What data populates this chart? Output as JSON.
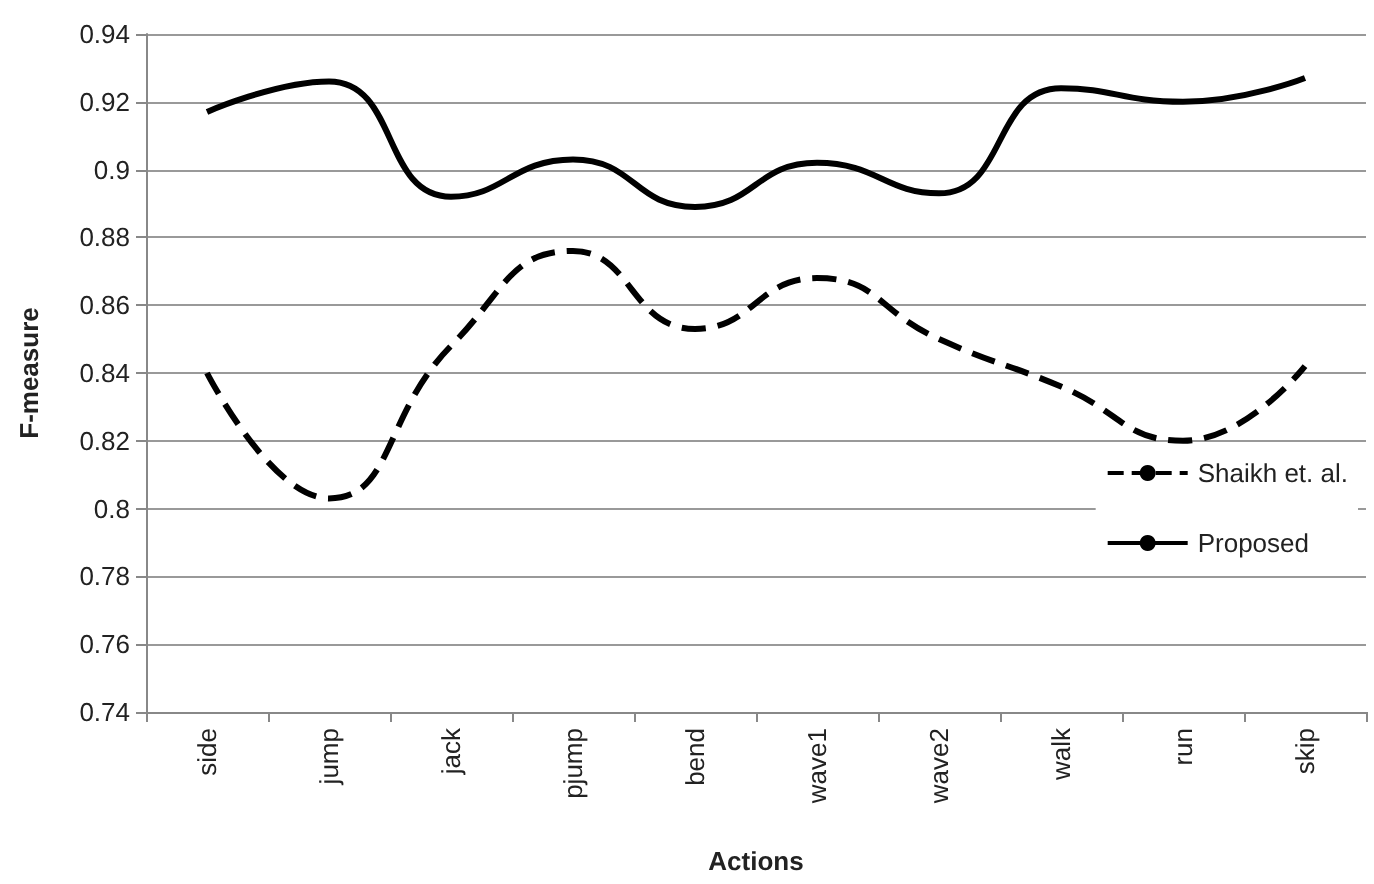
{
  "chart_data": {
    "type": "line",
    "xlabel": "Actions",
    "ylabel": "F-measure",
    "categories": [
      "side",
      "jump",
      "jack",
      "pjump",
      "bend",
      "wave1",
      "wave2",
      "walk",
      "run",
      "skip"
    ],
    "series": [
      {
        "name": "Shaikh et. al.",
        "color": "#000000",
        "line_style": "dashed",
        "values": [
          0.84,
          0.803,
          0.848,
          0.876,
          0.853,
          0.868,
          0.85,
          0.836,
          0.82,
          0.842
        ]
      },
      {
        "name": "Proposed",
        "color": "#000000",
        "line_style": "solid",
        "values": [
          0.917,
          0.926,
          0.892,
          0.903,
          0.889,
          0.902,
          0.893,
          0.924,
          0.92,
          0.927
        ]
      }
    ],
    "ylim": [
      0.74,
      0.94
    ],
    "yticks": [
      0.74,
      0.76,
      0.78,
      0.8,
      0.82,
      0.84,
      0.86,
      0.88,
      0.9,
      0.92,
      0.94
    ],
    "grid": "y",
    "legend": "right",
    "marker": "none"
  }
}
